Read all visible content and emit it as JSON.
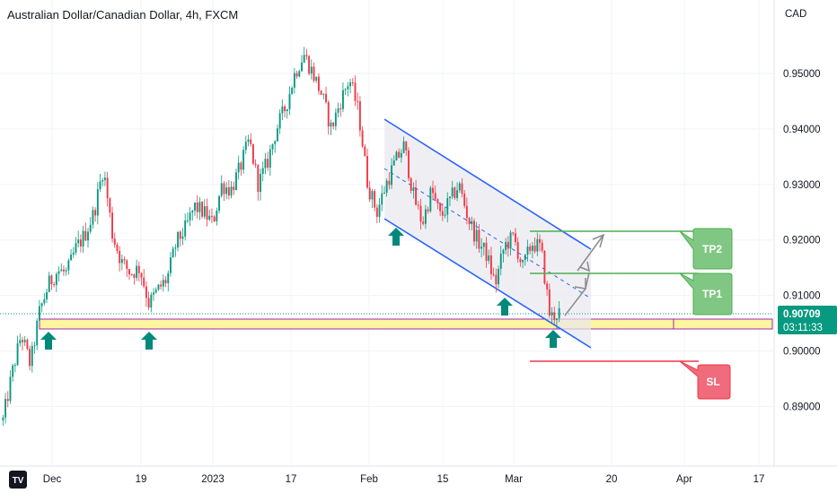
{
  "header": {
    "symbol_title": "Australian Dollar/Canadian Dollar, 4h, FXCM"
  },
  "price_axis": {
    "currency": "CAD",
    "last_price": "0.90709",
    "countdown": "03:11:33"
  },
  "annotations": {
    "tp2_label": "TP2",
    "tp1_label": "TP1",
    "sl_label": "SL"
  },
  "colors": {
    "up_candle": "#089981",
    "down_candle": "#f23645",
    "channel": "#2962ff",
    "support_zone": "#fff59d",
    "support_border": "#9c27b0",
    "target_line": "#4caf50",
    "stop_line": "#f23645",
    "arrow": "#00897b",
    "last_price_badge": "#089981"
  },
  "chart_data": {
    "type": "candlestick",
    "title": "Australian Dollar/Canadian Dollar, 4h, FXCM",
    "ylabel": "CAD",
    "ylim": [
      0.8845,
      0.9575
    ],
    "y_ticks": [
      "0.95000",
      "0.94000",
      "0.93000",
      "0.92000",
      "0.91000",
      "0.90000",
      "0.89000"
    ],
    "x_ticks": [
      "Dec",
      "19",
      "2023",
      "17",
      "Feb",
      "15",
      "Mar",
      "20",
      "Apr",
      "17"
    ],
    "last_price": 0.90709,
    "path": [
      {
        "date": "Nov 24",
        "price": 0.8875
      },
      {
        "date": "Nov 25",
        "price": 0.896
      },
      {
        "date": "Nov 28",
        "price": 0.903
      },
      {
        "date": "Nov 29",
        "price": 0.8975
      },
      {
        "date": "Nov 30",
        "price": 0.907
      },
      {
        "date": "Dec 2",
        "price": 0.912
      },
      {
        "date": "Dec 5",
        "price": 0.9145
      },
      {
        "date": "Dec 7",
        "price": 0.914
      },
      {
        "date": "Dec 8",
        "price": 0.9185
      },
      {
        "date": "Dec 9",
        "price": 0.921
      },
      {
        "date": "Dec 12",
        "price": 0.925
      },
      {
        "date": "Dec 13",
        "price": 0.933
      },
      {
        "date": "Dec 14",
        "price": 0.921
      },
      {
        "date": "Dec 15",
        "price": 0.916
      },
      {
        "date": "Dec 16",
        "price": 0.914
      },
      {
        "date": "Dec 19",
        "price": 0.915
      },
      {
        "date": "Dec 20",
        "price": 0.9085
      },
      {
        "date": "Dec 21",
        "price": 0.911
      },
      {
        "date": "Dec 23",
        "price": 0.913
      },
      {
        "date": "Dec 27",
        "price": 0.9195
      },
      {
        "date": "Dec 29",
        "price": 0.922
      },
      {
        "date": "Jan 2",
        "price": 0.926
      },
      {
        "date": "Jan 4",
        "price": 0.925
      },
      {
        "date": "Jan 5",
        "price": 0.923
      },
      {
        "date": "Jan 8",
        "price": 0.93
      },
      {
        "date": "Jan 10",
        "price": 0.929
      },
      {
        "date": "Jan 12",
        "price": 0.933
      },
      {
        "date": "Jan 16",
        "price": 0.938
      },
      {
        "date": "Jan 18",
        "price": 0.93
      },
      {
        "date": "Jan 19",
        "price": 0.934
      },
      {
        "date": "Jan 20",
        "price": 0.94
      },
      {
        "date": "Jan 22",
        "price": 0.944
      },
      {
        "date": "Jan 24",
        "price": 0.95
      },
      {
        "date": "Jan 25",
        "price": 0.9535
      },
      {
        "date": "Jan 26",
        "price": 0.95
      },
      {
        "date": "Jan 27",
        "price": 0.946
      },
      {
        "date": "Jan 30",
        "price": 0.94
      },
      {
        "date": "Jan 31",
        "price": 0.945
      },
      {
        "date": "Feb 1",
        "price": 0.949
      },
      {
        "date": "Feb 2",
        "price": 0.943
      },
      {
        "date": "Feb 3",
        "price": 0.93
      },
      {
        "date": "Feb 6",
        "price": 0.925
      },
      {
        "date": "Feb 7",
        "price": 0.93
      },
      {
        "date": "Feb 9",
        "price": 0.934
      },
      {
        "date": "Feb 10",
        "price": 0.937
      },
      {
        "date": "Feb 13",
        "price": 0.928
      },
      {
        "date": "Feb 14",
        "price": 0.923
      },
      {
        "date": "Feb 15",
        "price": 0.929
      },
      {
        "date": "Feb 17",
        "price": 0.924
      },
      {
        "date": "Feb 20",
        "price": 0.927
      },
      {
        "date": "Feb 22",
        "price": 0.93
      },
      {
        "date": "Feb 23",
        "price": 0.924
      },
      {
        "date": "Feb 24",
        "price": 0.92
      },
      {
        "date": "Feb 27",
        "price": 0.9175
      },
      {
        "date": "Feb 28",
        "price": 0.912
      },
      {
        "date": "Mar 1",
        "price": 0.919
      },
      {
        "date": "Mar 2",
        "price": 0.9205
      },
      {
        "date": "Mar 3",
        "price": 0.915
      },
      {
        "date": "Mar 5",
        "price": 0.9195
      },
      {
        "date": "Mar 6",
        "price": 0.9185
      },
      {
        "date": "Mar 7",
        "price": 0.906
      },
      {
        "date": "Mar 8",
        "price": 0.907
      }
    ]
  }
}
